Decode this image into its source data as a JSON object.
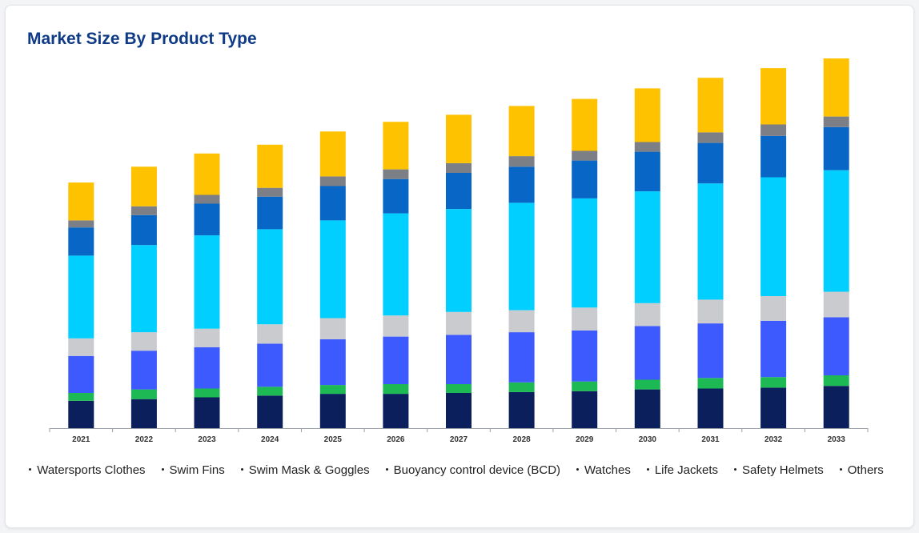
{
  "card": {
    "title": "Market Size By Product Type"
  },
  "chart_data": {
    "type": "bar",
    "stacked": true,
    "title": "Market Size By Product Type",
    "xlabel": "",
    "ylabel": "",
    "grid": false,
    "legend_position": "bottom",
    "categories": [
      "2021",
      "2022",
      "2023",
      "2024",
      "2025",
      "2026",
      "2027",
      "2028",
      "2029",
      "2030",
      "2031",
      "2032",
      "2033"
    ],
    "ylim": [
      0,
      40
    ],
    "series": [
      {
        "name": "Watersports Clothes",
        "color": "#0b1f5c",
        "values": [
          3.1,
          3.3,
          3.5,
          3.7,
          3.9,
          3.9,
          4.0,
          4.1,
          4.2,
          4.4,
          4.5,
          4.6,
          4.8
        ]
      },
      {
        "name": "Swim Fins",
        "color": "#1db954",
        "values": [
          0.9,
          1.1,
          1.0,
          1.0,
          1.0,
          1.1,
          1.0,
          1.1,
          1.1,
          1.1,
          1.2,
          1.2,
          1.2
        ]
      },
      {
        "name": "Swim Mask & Goggles",
        "color": "#3d5afe",
        "values": [
          4.2,
          4.4,
          4.7,
          4.9,
          5.2,
          5.4,
          5.6,
          5.7,
          5.8,
          6.1,
          6.2,
          6.4,
          6.6
        ]
      },
      {
        "name": "Buoyancy control device (BCD)",
        "color": "#c9cbcf",
        "values": [
          2.0,
          2.1,
          2.1,
          2.2,
          2.4,
          2.4,
          2.6,
          2.5,
          2.6,
          2.6,
          2.7,
          2.8,
          2.9
        ]
      },
      {
        "name": "Watches",
        "color": "#00cfff",
        "values": [
          9.4,
          9.9,
          10.6,
          10.8,
          11.1,
          11.6,
          11.7,
          12.2,
          12.4,
          12.7,
          13.2,
          13.5,
          13.8
        ]
      },
      {
        "name": "Life Jackets",
        "color": "#0866c6",
        "values": [
          3.2,
          3.4,
          3.6,
          3.7,
          3.9,
          3.9,
          4.1,
          4.1,
          4.3,
          4.5,
          4.6,
          4.7,
          4.9
        ]
      },
      {
        "name": "Safety Helmets",
        "color": "#7c7f85",
        "values": [
          0.8,
          1.0,
          1.0,
          1.0,
          1.1,
          1.1,
          1.1,
          1.2,
          1.1,
          1.1,
          1.2,
          1.3,
          1.2
        ]
      },
      {
        "name": "Others",
        "color": "#ffc200",
        "values": [
          4.3,
          4.5,
          4.7,
          4.9,
          5.1,
          5.4,
          5.5,
          5.7,
          5.9,
          6.1,
          6.2,
          6.4,
          6.6
        ]
      }
    ]
  }
}
